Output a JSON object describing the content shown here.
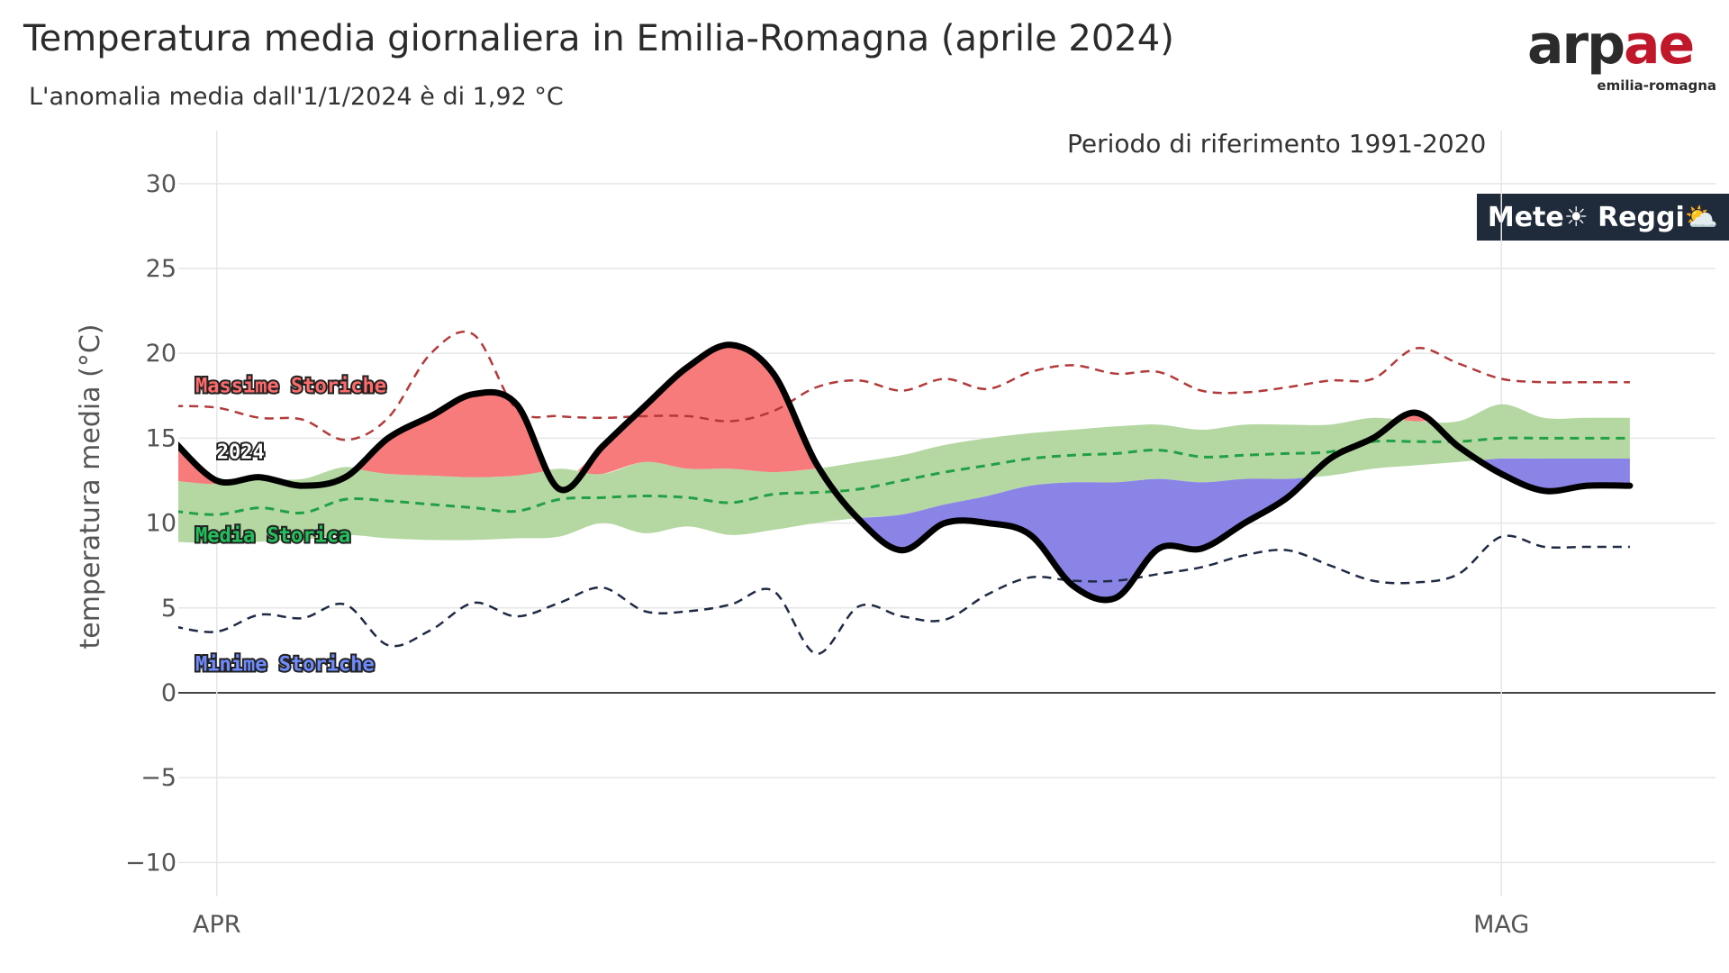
{
  "header": {
    "title": "Temperatura media giornaliera in Emilia-Romagna  (aprile  2024)",
    "subtitle": "L'anomalia media dall'1/1/2024 è di 1,92 °C",
    "reference_note": "Periodo di riferimento 1991-2020"
  },
  "logo": {
    "text_main": "arp",
    "text_accent": "ae",
    "text_sub": "emilia-romagna"
  },
  "badge": {
    "text": "Mete☀ Reggi⛅"
  },
  "colors": {
    "max_line": "#b33a3a",
    "min_line": "#1f2a45",
    "mean_line": "#22a045",
    "band_fill": "#b5d8a3",
    "warm_fill": "#f77b7b",
    "cold_fill": "#8a84e6",
    "actual_line": "#000000",
    "label_max": "#ff6b6b",
    "label_mean": "#22c05a",
    "label_min": "#6f8cff",
    "label_2024": "#ffffff"
  },
  "chart_data": {
    "type": "line",
    "ylabel": "temperatura media (°C)",
    "ylim": [
      -12,
      31
    ],
    "yticks": [
      30,
      25,
      20,
      15,
      10,
      5,
      0,
      -5,
      -10
    ],
    "ytick_labels": [
      "30",
      "25",
      "20",
      "15",
      "10",
      "5",
      "0",
      "−5",
      "−10"
    ],
    "xlim": [
      -0.9,
      35
    ],
    "xticks": [
      {
        "x": 0,
        "label": "APR"
      },
      {
        "x": 30,
        "label": "MAG"
      }
    ],
    "grid": true,
    "series_labels": {
      "max": "Massime Storiche",
      "mean": "Media Storica",
      "min": "Minime Storiche",
      "actual": "2024"
    },
    "x": [
      -1,
      0,
      1,
      2,
      3,
      4,
      5,
      6,
      7,
      8,
      9,
      10,
      11,
      12,
      13,
      14,
      15,
      16,
      17,
      18,
      19,
      20,
      21,
      22,
      23,
      24,
      25,
      26,
      27,
      28,
      29,
      30,
      31,
      32,
      33
    ],
    "actual_2024": [
      14.8,
      12.5,
      12.7,
      12.2,
      12.7,
      15.0,
      16.3,
      17.6,
      17.0,
      12.0,
      14.5,
      16.9,
      19.2,
      20.5,
      18.8,
      13.5,
      10.2,
      8.4,
      10.0,
      10.0,
      9.3,
      6.3,
      5.6,
      8.5,
      8.5,
      10.0,
      11.5,
      13.8,
      15.0,
      16.5,
      14.5,
      12.9,
      11.9,
      12.2,
      12.2
    ],
    "mean_historical": [
      10.7,
      10.5,
      10.9,
      10.6,
      11.4,
      11.3,
      11.1,
      10.9,
      10.7,
      11.4,
      11.5,
      11.6,
      11.5,
      11.2,
      11.7,
      11.8,
      12.0,
      12.5,
      13.0,
      13.4,
      13.8,
      14.0,
      14.1,
      14.3,
      13.9,
      14.0,
      14.1,
      14.2,
      14.8,
      14.8,
      14.8,
      15.0,
      15.0,
      15.0,
      15.0
    ],
    "band_upper": [
      12.5,
      12.3,
      12.6,
      12.6,
      13.3,
      12.9,
      12.8,
      12.7,
      12.8,
      13.2,
      12.9,
      13.6,
      13.2,
      13.2,
      13.0,
      13.2,
      13.6,
      14.0,
      14.6,
      15.0,
      15.3,
      15.5,
      15.7,
      15.8,
      15.5,
      15.8,
      15.8,
      15.8,
      16.2,
      16.0,
      16.0,
      17.0,
      16.2,
      16.2,
      16.2
    ],
    "band_lower": [
      8.9,
      8.8,
      8.9,
      9.0,
      9.3,
      9.1,
      9.0,
      9.0,
      9.1,
      9.2,
      10.0,
      9.4,
      9.8,
      9.3,
      9.6,
      10.0,
      10.3,
      10.5,
      11.1,
      11.6,
      12.2,
      12.4,
      12.4,
      12.6,
      12.4,
      12.6,
      12.6,
      12.8,
      13.2,
      13.4,
      13.6,
      13.8,
      13.8,
      13.8,
      13.8
    ],
    "max_historical": [
      16.9,
      16.8,
      16.2,
      16.1,
      14.9,
      16.2,
      20.0,
      21.1,
      16.7,
      16.3,
      16.2,
      16.3,
      16.3,
      16.0,
      16.6,
      18.0,
      18.4,
      17.8,
      18.5,
      17.9,
      18.9,
      19.3,
      18.8,
      18.9,
      17.8,
      17.7,
      18.0,
      18.4,
      18.5,
      20.3,
      19.4,
      18.5,
      18.3,
      18.3,
      18.3
    ],
    "min_historical": [
      3.9,
      3.6,
      4.6,
      4.4,
      5.2,
      2.8,
      3.7,
      5.3,
      4.5,
      5.3,
      6.2,
      4.8,
      4.8,
      5.2,
      6.0,
      2.3,
      5.1,
      4.5,
      4.3,
      5.8,
      6.8,
      6.6,
      6.6,
      7.0,
      7.4,
      8.1,
      8.4,
      7.5,
      6.6,
      6.5,
      7.0,
      9.2,
      8.6,
      8.6,
      8.6
    ]
  }
}
